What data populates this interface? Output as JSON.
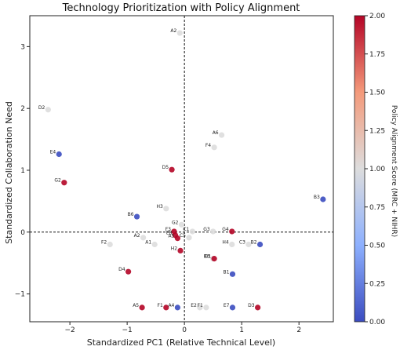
{
  "chart_data": {
    "type": "scatter",
    "title": "Technology Prioritization with Policy Alignment",
    "xlabel": "Standardized PC1 (Relative Technical Level)",
    "ylabel": "Standardized Collaboration Need",
    "xlim": [
      -2.7,
      2.6
    ],
    "ylim": [
      -1.45,
      3.5
    ],
    "xticks": [
      -2,
      -1,
      0,
      1,
      2
    ],
    "yticks": [
      -1,
      0,
      1,
      2,
      3
    ],
    "grid": false,
    "reference_lines": {
      "x": 0,
      "y": 0,
      "style": "dashed"
    },
    "colorbar": {
      "label": "Policy Alignment Score (MRC + NIHR)",
      "min": 0.0,
      "max": 2.0,
      "ticks": [
        "0.00",
        "0.25",
        "0.50",
        "0.75",
        "1.00",
        "1.25",
        "1.50",
        "1.75",
        "2.00"
      ],
      "colormap": "coolwarm",
      "low_color": "#3b4cc0",
      "mid_color": "#dddddd",
      "high_color": "#b40426"
    },
    "points": [
      {
        "label": "A2",
        "x": -0.08,
        "y": 3.22,
        "score": 1.0
      },
      {
        "label": "D2",
        "x": -2.38,
        "y": 1.98,
        "score": 1.0
      },
      {
        "label": "A6",
        "x": 0.65,
        "y": 1.57,
        "score": 1.0
      },
      {
        "label": "F4",
        "x": 0.52,
        "y": 1.37,
        "score": 1.0
      },
      {
        "label": "E4",
        "x": -2.19,
        "y": 1.26,
        "score": 0.0
      },
      {
        "label": "D5",
        "x": -0.22,
        "y": 1.01,
        "score": 2.0
      },
      {
        "label": "G2",
        "x": -2.1,
        "y": 0.8,
        "score": 2.0
      },
      {
        "label": "B3",
        "x": 2.42,
        "y": 0.53,
        "score": 0.0
      },
      {
        "label": "H3",
        "x": -0.32,
        "y": 0.38,
        "score": 1.0
      },
      {
        "label": "B6",
        "x": -0.83,
        "y": 0.25,
        "score": 0.0
      },
      {
        "label": "G2",
        "x": -0.05,
        "y": 0.12,
        "score": 1.0
      },
      {
        "label": "F3",
        "x": -0.18,
        "y": 0.01,
        "score": 2.0
      },
      {
        "label": "C1",
        "x": 0.14,
        "y": 0.01,
        "score": 1.0
      },
      {
        "label": "G3",
        "x": 0.5,
        "y": 0.01,
        "score": 1.0
      },
      {
        "label": "G4",
        "x": 0.83,
        "y": 0.01,
        "score": 2.0
      },
      {
        "label": "A2",
        "x": -0.72,
        "y": -0.09,
        "score": 1.0
      },
      {
        "label": "E8",
        "x": -0.16,
        "y": -0.05,
        "score": 2.0
      },
      {
        "label": "A5",
        "x": -0.12,
        "y": -0.1,
        "score": 2.0
      },
      {
        "label": "C5",
        "x": 0.08,
        "y": -0.09,
        "score": 1.0
      },
      {
        "label": "F2",
        "x": -1.3,
        "y": -0.2,
        "score": 1.0
      },
      {
        "label": "A1",
        "x": -0.52,
        "y": -0.2,
        "score": 1.0
      },
      {
        "label": "H4",
        "x": 0.83,
        "y": -0.2,
        "score": 1.0
      },
      {
        "label": "C3",
        "x": 1.12,
        "y": -0.2,
        "score": 1.0
      },
      {
        "label": "B2",
        "x": 1.32,
        "y": -0.2,
        "score": 0.0
      },
      {
        "label": "H2",
        "x": -0.07,
        "y": -0.3,
        "score": 2.0
      },
      {
        "label": "B3",
        "x": 0.5,
        "y": -0.43,
        "score": 1.0
      },
      {
        "label": "D1",
        "x": 0.52,
        "y": -0.43,
        "score": 2.0
      },
      {
        "label": "D4",
        "x": -0.98,
        "y": -0.64,
        "score": 2.0
      },
      {
        "label": "B1",
        "x": 0.84,
        "y": -0.68,
        "score": 0.0
      },
      {
        "label": "A5",
        "x": -0.74,
        "y": -1.22,
        "score": 2.0
      },
      {
        "label": "F1",
        "x": -0.32,
        "y": -1.22,
        "score": 2.0
      },
      {
        "label": "A4",
        "x": -0.12,
        "y": -1.22,
        "score": 0.0
      },
      {
        "label": "E2",
        "x": 0.27,
        "y": -1.22,
        "score": 1.0
      },
      {
        "label": "F1",
        "x": 0.38,
        "y": -1.22,
        "score": 1.0
      },
      {
        "label": "E7",
        "x": 0.84,
        "y": -1.22,
        "score": 0.0
      },
      {
        "label": "D3",
        "x": 1.28,
        "y": -1.22,
        "score": 2.0
      }
    ]
  }
}
